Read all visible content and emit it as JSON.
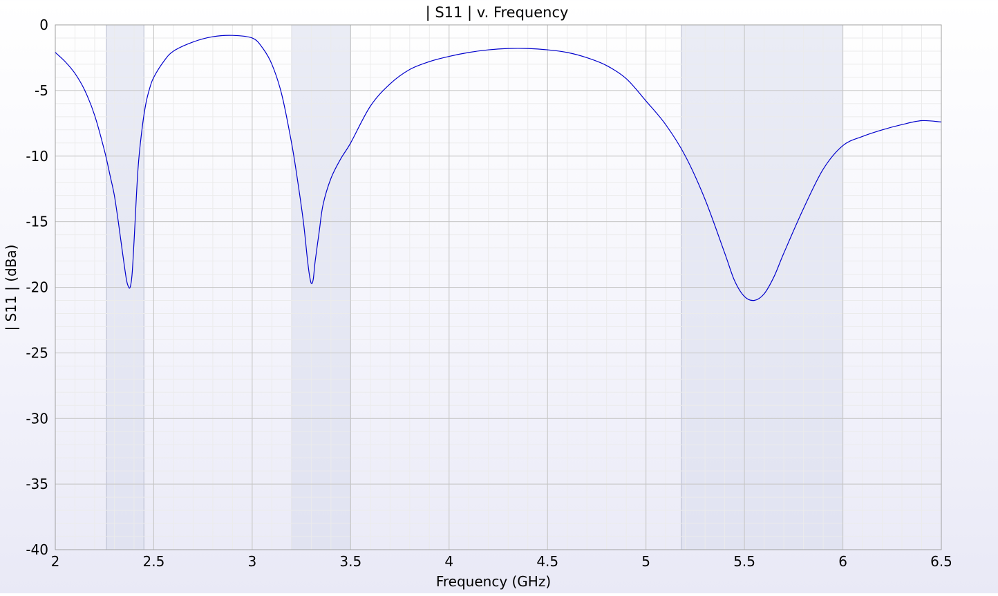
{
  "chart_data": {
    "type": "line",
    "title": "| S11 | v. Frequency",
    "xlabel": "Frequency (GHz)",
    "ylabel": "| S11 | (dBa)",
    "xlim": [
      2,
      6.5
    ],
    "ylim": [
      -40,
      0
    ],
    "xticks": [
      2,
      2.5,
      3,
      3.5,
      4,
      4.5,
      5,
      5.5,
      6,
      6.5
    ],
    "xtick_labels": [
      "2",
      "2.5",
      "3",
      "3.5",
      "4",
      "4.5",
      "5",
      "5.5",
      "6",
      "6.5"
    ],
    "yticks": [
      0,
      -5,
      -10,
      -15,
      -20,
      -25,
      -30,
      -35,
      -40
    ],
    "ytick_labels": [
      "0",
      "-5",
      "-10",
      "-15",
      "-20",
      "-25",
      "-30",
      "-35",
      "-40"
    ],
    "grid": true,
    "band_color": "#d9dcec",
    "line_color": "#0000cc",
    "bands": [
      {
        "x0": 2.26,
        "x1": 2.45
      },
      {
        "x0": 3.2,
        "x1": 3.5
      },
      {
        "x0": 5.18,
        "x1": 6.0
      }
    ],
    "series": [
      {
        "x": [
          2.0,
          2.05,
          2.1,
          2.15,
          2.2,
          2.25,
          2.28,
          2.3,
          2.32,
          2.34,
          2.36,
          2.37,
          2.38,
          2.39,
          2.4,
          2.42,
          2.44,
          2.46,
          2.48,
          2.5,
          2.55,
          2.6,
          2.7,
          2.8,
          2.9,
          3.0,
          3.05,
          3.1,
          3.15,
          3.2,
          3.23,
          3.26,
          3.28,
          3.29,
          3.3,
          3.31,
          3.32,
          3.34,
          3.36,
          3.4,
          3.45,
          3.5,
          3.6,
          3.7,
          3.8,
          3.9,
          4.0,
          4.1,
          4.2,
          4.3,
          4.4,
          4.5,
          4.6,
          4.7,
          4.8,
          4.9,
          5.0,
          5.1,
          5.2,
          5.3,
          5.4,
          5.45,
          5.5,
          5.55,
          5.6,
          5.65,
          5.7,
          5.8,
          5.9,
          6.0,
          6.1,
          6.2,
          6.3,
          6.4,
          6.5
        ],
        "y": [
          -2.1,
          -2.8,
          -3.7,
          -5.0,
          -6.9,
          -9.6,
          -11.6,
          -13.0,
          -15.0,
          -17.2,
          -19.3,
          -19.9,
          -20.0,
          -19.0,
          -16.5,
          -11.0,
          -8.0,
          -6.0,
          -4.8,
          -4.0,
          -2.8,
          -2.0,
          -1.3,
          -0.9,
          -0.8,
          -1.0,
          -1.7,
          -3.0,
          -5.3,
          -9.0,
          -11.8,
          -15.0,
          -17.8,
          -19.0,
          -19.7,
          -19.4,
          -18.0,
          -15.8,
          -13.7,
          -11.7,
          -10.2,
          -9.0,
          -6.2,
          -4.5,
          -3.4,
          -2.8,
          -2.4,
          -2.1,
          -1.9,
          -1.8,
          -1.8,
          -1.9,
          -2.1,
          -2.5,
          -3.1,
          -4.1,
          -5.8,
          -7.6,
          -10.0,
          -13.3,
          -17.4,
          -19.5,
          -20.7,
          -21.0,
          -20.5,
          -19.2,
          -17.4,
          -14.0,
          -11.0,
          -9.2,
          -8.5,
          -8.0,
          -7.6,
          -7.3,
          -7.4
        ]
      }
    ]
  }
}
